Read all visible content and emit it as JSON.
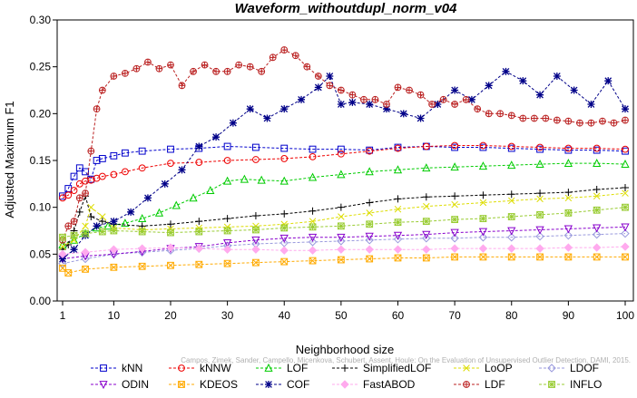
{
  "chart_data": {
    "type": "line",
    "title": "Waveform_withoutdupl_norm_v04",
    "xlabel": "Neighborhood size",
    "ylabel": "Adjusted Maximum F1",
    "xlim": [
      1,
      100
    ],
    "ylim": [
      0,
      0.3
    ],
    "xticks": [
      1,
      10,
      20,
      30,
      40,
      50,
      60,
      70,
      80,
      90,
      100
    ],
    "yticks": [
      0.0,
      0.05,
      0.1,
      0.15,
      0.2,
      0.25,
      0.3
    ],
    "ytick_labels": [
      "0.00",
      "0.05",
      "0.10",
      "0.15",
      "0.20",
      "0.25",
      "0.30"
    ],
    "grid": false,
    "legend_position": "bottom",
    "watermark": "Campos, Zimek, Sander, Campello, Micenkova, Schubert, Assent, Houle: On the Evaluation of Unsupervised Outlier Detection. DAMI, 2015.",
    "series": [
      {
        "name": "kNN",
        "color": "#0000cc",
        "marker": "square",
        "x": [
          1,
          2,
          3,
          4,
          5,
          6,
          7,
          8,
          10,
          12,
          15,
          20,
          25,
          30,
          35,
          40,
          45,
          50,
          55,
          60,
          65,
          70,
          75,
          80,
          85,
          90,
          95,
          100
        ],
        "y": [
          0.112,
          0.12,
          0.133,
          0.142,
          0.138,
          0.13,
          0.15,
          0.152,
          0.155,
          0.158,
          0.16,
          0.162,
          0.163,
          0.165,
          0.164,
          0.163,
          0.162,
          0.162,
          0.161,
          0.164,
          0.165,
          0.164,
          0.164,
          0.163,
          0.162,
          0.161,
          0.161,
          0.16
        ]
      },
      {
        "name": "kNNW",
        "color": "#ee0000",
        "marker": "circle",
        "x": [
          1,
          2,
          3,
          4,
          5,
          6,
          7,
          8,
          10,
          12,
          15,
          20,
          25,
          30,
          35,
          40,
          45,
          50,
          55,
          60,
          65,
          70,
          75,
          80,
          85,
          90,
          95,
          100
        ],
        "y": [
          0.11,
          0.113,
          0.118,
          0.125,
          0.128,
          0.129,
          0.131,
          0.133,
          0.135,
          0.138,
          0.142,
          0.147,
          0.148,
          0.15,
          0.151,
          0.152,
          0.154,
          0.157,
          0.16,
          0.163,
          0.165,
          0.166,
          0.166,
          0.165,
          0.164,
          0.163,
          0.163,
          0.162
        ]
      },
      {
        "name": "LOF",
        "color": "#00cc00",
        "marker": "triangle-up",
        "x": [
          1,
          3,
          5,
          7,
          9,
          12,
          15,
          18,
          21,
          24,
          27,
          30,
          33,
          36,
          40,
          45,
          50,
          55,
          60,
          65,
          70,
          75,
          80,
          85,
          90,
          95,
          100
        ],
        "y": [
          0.06,
          0.065,
          0.072,
          0.078,
          0.08,
          0.083,
          0.088,
          0.094,
          0.102,
          0.11,
          0.118,
          0.128,
          0.13,
          0.129,
          0.128,
          0.132,
          0.135,
          0.138,
          0.14,
          0.142,
          0.143,
          0.144,
          0.145,
          0.146,
          0.147,
          0.147,
          0.146
        ]
      },
      {
        "name": "SimplifiedLOF",
        "color": "#000000",
        "marker": "plus",
        "x": [
          1,
          2,
          3,
          4,
          5,
          6,
          8,
          10,
          15,
          20,
          25,
          30,
          35,
          40,
          45,
          50,
          55,
          60,
          65,
          70,
          75,
          80,
          85,
          90,
          95,
          100
        ],
        "y": [
          0.055,
          0.06,
          0.075,
          0.095,
          0.112,
          0.09,
          0.085,
          0.082,
          0.08,
          0.082,
          0.085,
          0.088,
          0.091,
          0.093,
          0.096,
          0.1,
          0.105,
          0.109,
          0.111,
          0.112,
          0.113,
          0.114,
          0.115,
          0.116,
          0.119,
          0.121
        ]
      },
      {
        "name": "LoOP",
        "color": "#dddd00",
        "marker": "x",
        "x": [
          1,
          3,
          5,
          6,
          8,
          10,
          15,
          20,
          25,
          30,
          35,
          40,
          45,
          50,
          55,
          60,
          65,
          70,
          75,
          80,
          85,
          90,
          95,
          100
        ],
        "y": [
          0.058,
          0.065,
          0.08,
          0.1,
          0.09,
          0.078,
          0.076,
          0.077,
          0.078,
          0.079,
          0.08,
          0.082,
          0.085,
          0.09,
          0.094,
          0.098,
          0.101,
          0.103,
          0.105,
          0.107,
          0.109,
          0.11,
          0.112,
          0.115
        ]
      },
      {
        "name": "LDOF",
        "color": "#9999dd",
        "marker": "diamond",
        "x": [
          1,
          5,
          10,
          15,
          20,
          25,
          30,
          35,
          40,
          45,
          50,
          55,
          60,
          65,
          70,
          75,
          80,
          85,
          90,
          95,
          100
        ],
        "y": [
          0.04,
          0.045,
          0.05,
          0.052,
          0.054,
          0.056,
          0.059,
          0.061,
          0.062,
          0.063,
          0.064,
          0.065,
          0.066,
          0.067,
          0.067,
          0.068,
          0.068,
          0.069,
          0.07,
          0.071,
          0.072
        ]
      },
      {
        "name": "ODIN",
        "color": "#8800cc",
        "marker": "triangle-down",
        "x": [
          1,
          5,
          10,
          15,
          20,
          25,
          30,
          35,
          40,
          45,
          50,
          55,
          60,
          65,
          70,
          75,
          80,
          85,
          90,
          95,
          100
        ],
        "y": [
          0.045,
          0.048,
          0.05,
          0.053,
          0.056,
          0.058,
          0.062,
          0.065,
          0.067,
          0.068,
          0.068,
          0.069,
          0.07,
          0.071,
          0.073,
          0.074,
          0.075,
          0.076,
          0.077,
          0.078,
          0.079
        ]
      },
      {
        "name": "KDEOS",
        "color": "#ffaa00",
        "marker": "square-x",
        "x": [
          1,
          2,
          5,
          10,
          15,
          20,
          25,
          30,
          35,
          40,
          45,
          50,
          55,
          60,
          65,
          70,
          75,
          80,
          85,
          90,
          95,
          100
        ],
        "y": [
          0.035,
          0.03,
          0.034,
          0.036,
          0.037,
          0.038,
          0.039,
          0.04,
          0.041,
          0.042,
          0.043,
          0.044,
          0.045,
          0.046,
          0.046,
          0.047,
          0.047,
          0.047,
          0.047,
          0.047,
          0.047,
          0.047
        ]
      },
      {
        "name": "COF",
        "color": "#000088",
        "marker": "asterisk",
        "x": [
          1,
          3,
          5,
          7,
          10,
          13,
          16,
          19,
          22,
          25,
          28,
          31,
          34,
          37,
          40,
          43,
          46,
          48,
          50,
          52,
          55,
          58,
          61,
          64,
          67,
          70,
          73,
          76,
          79,
          82,
          85,
          88,
          91,
          94,
          97,
          100
        ],
        "y": [
          0.045,
          0.055,
          0.07,
          0.08,
          0.085,
          0.095,
          0.11,
          0.125,
          0.14,
          0.165,
          0.175,
          0.19,
          0.205,
          0.195,
          0.205,
          0.215,
          0.228,
          0.24,
          0.21,
          0.212,
          0.21,
          0.205,
          0.2,
          0.195,
          0.21,
          0.225,
          0.215,
          0.23,
          0.245,
          0.235,
          0.22,
          0.24,
          0.225,
          0.21,
          0.235,
          0.205
        ]
      },
      {
        "name": "FastABOD",
        "color": "#ffaaee",
        "marker": "diamond-filled",
        "x": [
          1,
          5,
          10,
          15,
          20,
          25,
          30,
          35,
          40,
          45,
          50,
          55,
          60,
          65,
          70,
          75,
          80,
          85,
          90,
          95,
          100
        ],
        "y": [
          0.05,
          0.052,
          0.055,
          0.056,
          0.057,
          0.056,
          0.055,
          0.055,
          0.054,
          0.054,
          0.055,
          0.055,
          0.055,
          0.055,
          0.056,
          0.056,
          0.056,
          0.056,
          0.057,
          0.057,
          0.058
        ]
      },
      {
        "name": "LDF",
        "color": "#bb2222",
        "marker": "circle-plus",
        "x": [
          1,
          2,
          3,
          4,
          5,
          6,
          7,
          8,
          10,
          12,
          14,
          16,
          18,
          20,
          22,
          24,
          26,
          28,
          30,
          32,
          34,
          36,
          38,
          40,
          42,
          44,
          46,
          48,
          50,
          52,
          54,
          56,
          58,
          60,
          62,
          64,
          66,
          68,
          70,
          72,
          74,
          76,
          78,
          80,
          82,
          84,
          86,
          88,
          90,
          92,
          94,
          96,
          98,
          100
        ],
        "y": [
          0.065,
          0.08,
          0.085,
          0.11,
          0.115,
          0.16,
          0.205,
          0.225,
          0.24,
          0.243,
          0.248,
          0.255,
          0.248,
          0.252,
          0.23,
          0.245,
          0.252,
          0.245,
          0.245,
          0.252,
          0.25,
          0.245,
          0.26,
          0.268,
          0.262,
          0.25,
          0.24,
          0.23,
          0.225,
          0.22,
          0.215,
          0.215,
          0.21,
          0.228,
          0.225,
          0.22,
          0.21,
          0.215,
          0.21,
          0.215,
          0.205,
          0.2,
          0.2,
          0.198,
          0.195,
          0.195,
          0.195,
          0.193,
          0.192,
          0.19,
          0.19,
          0.192,
          0.19,
          0.193
        ]
      },
      {
        "name": "INFLO",
        "color": "#99cc33",
        "marker": "square-star",
        "x": [
          1,
          3,
          5,
          8,
          10,
          15,
          20,
          25,
          30,
          35,
          40,
          45,
          50,
          55,
          60,
          65,
          70,
          75,
          80,
          85,
          90,
          95,
          100
        ],
        "y": [
          0.068,
          0.07,
          0.072,
          0.074,
          0.075,
          0.074,
          0.073,
          0.074,
          0.075,
          0.076,
          0.078,
          0.079,
          0.08,
          0.082,
          0.084,
          0.085,
          0.087,
          0.088,
          0.09,
          0.092,
          0.094,
          0.097,
          0.1
        ]
      }
    ]
  }
}
